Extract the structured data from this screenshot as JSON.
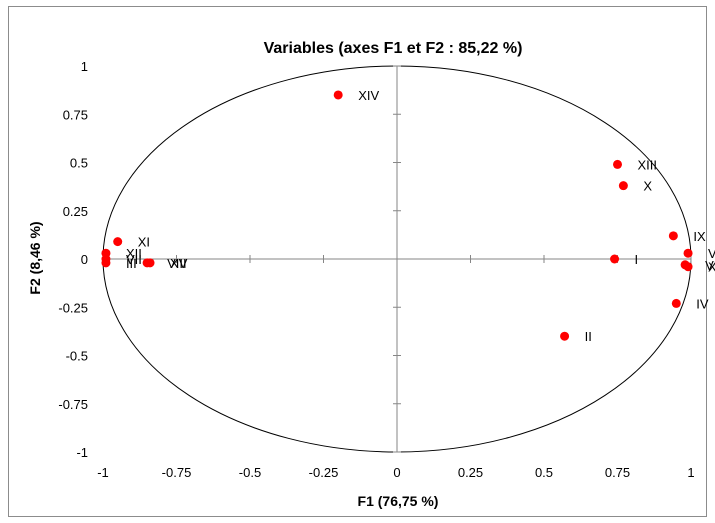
{
  "chart_data": {
    "type": "scatter",
    "title": "Variables (axes F1 et F2 : 85,22 %)",
    "xlabel": "F1 (76,75 %)",
    "ylabel": "F2 (8,46 %)",
    "xlim": [
      -1,
      1
    ],
    "ylim": [
      -1,
      1
    ],
    "xticks": [
      -1,
      -0.75,
      -0.5,
      -0.25,
      0,
      0.25,
      0.5,
      0.75,
      1
    ],
    "yticks": [
      -1,
      -0.75,
      -0.5,
      -0.25,
      0,
      0.25,
      0.5,
      0.75,
      1
    ],
    "xtick_labels": [
      "-1",
      "-0.75",
      "-0.5",
      "-0.25",
      "0",
      "0.25",
      "0.5",
      "0.75",
      "1"
    ],
    "ytick_labels": [
      "-1",
      "-0.75",
      "-0.5",
      "-0.25",
      "0",
      "0.25",
      "0.5",
      "0.75",
      "1"
    ],
    "grid": false,
    "unit_circle": true,
    "marker_color": "#ff0000",
    "points": [
      {
        "label": "I",
        "x": 0.74,
        "y": 0.0
      },
      {
        "label": "II",
        "x": 0.57,
        "y": -0.4
      },
      {
        "label": "III",
        "x": -0.99,
        "y": -0.02
      },
      {
        "label": "IV",
        "x": 0.95,
        "y": -0.23
      },
      {
        "label": "V",
        "x": 0.99,
        "y": 0.03
      },
      {
        "label": "VI",
        "x": 0.98,
        "y": -0.03
      },
      {
        "label": "VII",
        "x": -0.99,
        "y": 0.0
      },
      {
        "label": "VIII",
        "x": -0.85,
        "y": -0.02
      },
      {
        "label": "IX",
        "x": 0.94,
        "y": 0.12
      },
      {
        "label": "X",
        "x": 0.77,
        "y": 0.38
      },
      {
        "label": "XI",
        "x": -0.95,
        "y": 0.09
      },
      {
        "label": "XII",
        "x": -0.99,
        "y": 0.03
      },
      {
        "label": "XIII",
        "x": 0.75,
        "y": 0.49
      },
      {
        "label": "XIV",
        "x": -0.2,
        "y": 0.85
      },
      {
        "label": "XV",
        "x": -0.84,
        "y": -0.02
      },
      {
        "label": "XVI",
        "x": 0.99,
        "y": -0.04
      }
    ]
  }
}
